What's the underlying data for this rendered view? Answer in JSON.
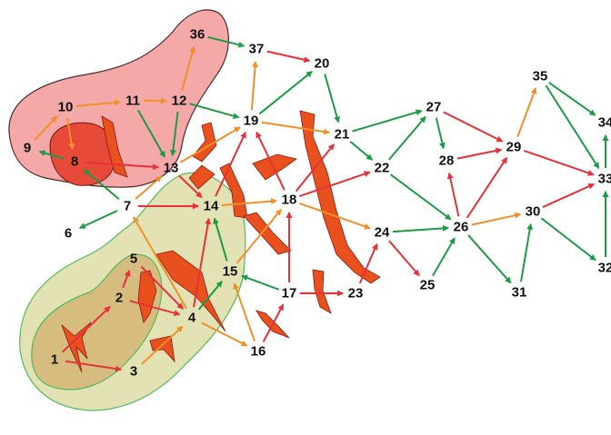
{
  "colors": {
    "red": "#e8303a",
    "green": "#1e9a46",
    "orange": "#f0902a",
    "barrier": "#e8501e",
    "barrier_edge": "#8a1a10",
    "region_pink": "#f4a8a8",
    "region_dark_red": "#e84a3a",
    "region_light_green": "#e2e2b4",
    "region_olive": "#d4b87a"
  },
  "nodes": [
    {
      "id": "1",
      "label": "1"
    },
    {
      "id": "2",
      "label": "2"
    },
    {
      "id": "3",
      "label": "3"
    },
    {
      "id": "4",
      "label": "4"
    },
    {
      "id": "5",
      "label": "5"
    },
    {
      "id": "6",
      "label": "6"
    },
    {
      "id": "7",
      "label": "7"
    },
    {
      "id": "8",
      "label": "8"
    },
    {
      "id": "9",
      "label": "9"
    },
    {
      "id": "10",
      "label": "10"
    },
    {
      "id": "11",
      "label": "11"
    },
    {
      "id": "12",
      "label": "12"
    },
    {
      "id": "13",
      "label": "13"
    },
    {
      "id": "14",
      "label": "14"
    },
    {
      "id": "15",
      "label": "15"
    },
    {
      "id": "16",
      "label": "16"
    },
    {
      "id": "17",
      "label": "17"
    },
    {
      "id": "18",
      "label": "18"
    },
    {
      "id": "19",
      "label": "19"
    },
    {
      "id": "20",
      "label": "20"
    },
    {
      "id": "21",
      "label": "21"
    },
    {
      "id": "22",
      "label": "22"
    },
    {
      "id": "23",
      "label": "23"
    },
    {
      "id": "24",
      "label": "24"
    },
    {
      "id": "25",
      "label": "25"
    },
    {
      "id": "26",
      "label": "26"
    },
    {
      "id": "27",
      "label": "27"
    },
    {
      "id": "28",
      "label": "28"
    },
    {
      "id": "29",
      "label": "29"
    },
    {
      "id": "30",
      "label": "30"
    },
    {
      "id": "31",
      "label": "31"
    },
    {
      "id": "32",
      "label": "32"
    },
    {
      "id": "33",
      "label": "33"
    },
    {
      "id": "34",
      "label": "34"
    },
    {
      "id": "35",
      "label": "35"
    },
    {
      "id": "36",
      "label": "36"
    },
    {
      "id": "37",
      "label": "37"
    }
  ],
  "edges": [
    {
      "from": "1",
      "to": "2",
      "color": "red"
    },
    {
      "from": "1",
      "to": "3",
      "color": "red"
    },
    {
      "from": "2",
      "to": "5",
      "color": "red"
    },
    {
      "from": "2",
      "to": "4",
      "color": "red"
    },
    {
      "from": "3",
      "to": "4",
      "color": "orange"
    },
    {
      "from": "5",
      "to": "4",
      "color": "red"
    },
    {
      "from": "4",
      "to": "7",
      "color": "orange"
    },
    {
      "from": "4",
      "to": "14",
      "color": "red"
    },
    {
      "from": "4",
      "to": "15",
      "color": "green"
    },
    {
      "from": "4",
      "to": "16",
      "color": "orange"
    },
    {
      "from": "7",
      "to": "6",
      "color": "green"
    },
    {
      "from": "7",
      "to": "8",
      "color": "green"
    },
    {
      "from": "7",
      "to": "14",
      "color": "red"
    },
    {
      "from": "7",
      "to": "13",
      "color": "orange"
    },
    {
      "from": "8",
      "to": "9",
      "color": "green"
    },
    {
      "from": "8",
      "to": "13",
      "color": "red"
    },
    {
      "from": "9",
      "to": "10",
      "color": "orange"
    },
    {
      "from": "10",
      "to": "11",
      "color": "orange"
    },
    {
      "from": "10",
      "to": "8",
      "color": "orange"
    },
    {
      "from": "11",
      "to": "12",
      "color": "orange"
    },
    {
      "from": "11",
      "to": "13",
      "color": "green"
    },
    {
      "from": "12",
      "to": "36",
      "color": "orange"
    },
    {
      "from": "12",
      "to": "19",
      "color": "green"
    },
    {
      "from": "12",
      "to": "13",
      "color": "green"
    },
    {
      "from": "13",
      "to": "19",
      "color": "orange"
    },
    {
      "from": "13",
      "to": "14",
      "color": "red"
    },
    {
      "from": "14",
      "to": "19",
      "color": "red"
    },
    {
      "from": "14",
      "to": "18",
      "color": "orange"
    },
    {
      "from": "15",
      "to": "14",
      "color": "green"
    },
    {
      "from": "15",
      "to": "18",
      "color": "orange"
    },
    {
      "from": "16",
      "to": "15",
      "color": "orange"
    },
    {
      "from": "16",
      "to": "17",
      "color": "red"
    },
    {
      "from": "17",
      "to": "15",
      "color": "green"
    },
    {
      "from": "17",
      "to": "18",
      "color": "red"
    },
    {
      "from": "17",
      "to": "23",
      "color": "red"
    },
    {
      "from": "18",
      "to": "19",
      "color": "red"
    },
    {
      "from": "18",
      "to": "21",
      "color": "red"
    },
    {
      "from": "18",
      "to": "22",
      "color": "red"
    },
    {
      "from": "18",
      "to": "24",
      "color": "orange"
    },
    {
      "from": "19",
      "to": "37",
      "color": "orange"
    },
    {
      "from": "19",
      "to": "20",
      "color": "green"
    },
    {
      "from": "19",
      "to": "21",
      "color": "orange"
    },
    {
      "from": "36",
      "to": "37",
      "color": "green"
    },
    {
      "from": "37",
      "to": "20",
      "color": "red"
    },
    {
      "from": "20",
      "to": "21",
      "color": "green"
    },
    {
      "from": "21",
      "to": "27",
      "color": "green"
    },
    {
      "from": "21",
      "to": "22",
      "color": "green"
    },
    {
      "from": "22",
      "to": "27",
      "color": "green"
    },
    {
      "from": "22",
      "to": "26",
      "color": "green"
    },
    {
      "from": "23",
      "to": "24",
      "color": "red"
    },
    {
      "from": "24",
      "to": "26",
      "color": "green"
    },
    {
      "from": "24",
      "to": "25",
      "color": "red"
    },
    {
      "from": "25",
      "to": "26",
      "color": "green"
    },
    {
      "from": "26",
      "to": "28",
      "color": "red"
    },
    {
      "from": "26",
      "to": "29",
      "color": "red"
    },
    {
      "from": "26",
      "to": "30",
      "color": "orange"
    },
    {
      "from": "26",
      "to": "31",
      "color": "green"
    },
    {
      "from": "27",
      "to": "28",
      "color": "green"
    },
    {
      "from": "27",
      "to": "29",
      "color": "red"
    },
    {
      "from": "28",
      "to": "29",
      "color": "red"
    },
    {
      "from": "29",
      "to": "35",
      "color": "orange"
    },
    {
      "from": "29",
      "to": "33",
      "color": "red"
    },
    {
      "from": "30",
      "to": "33",
      "color": "red"
    },
    {
      "from": "30",
      "to": "32",
      "color": "green"
    },
    {
      "from": "31",
      "to": "30",
      "color": "green"
    },
    {
      "from": "35",
      "to": "34",
      "color": "green"
    },
    {
      "from": "35",
      "to": "33",
      "color": "green"
    },
    {
      "from": "32",
      "to": "33",
      "color": "green"
    },
    {
      "from": "33",
      "to": "34",
      "color": "green"
    }
  ]
}
